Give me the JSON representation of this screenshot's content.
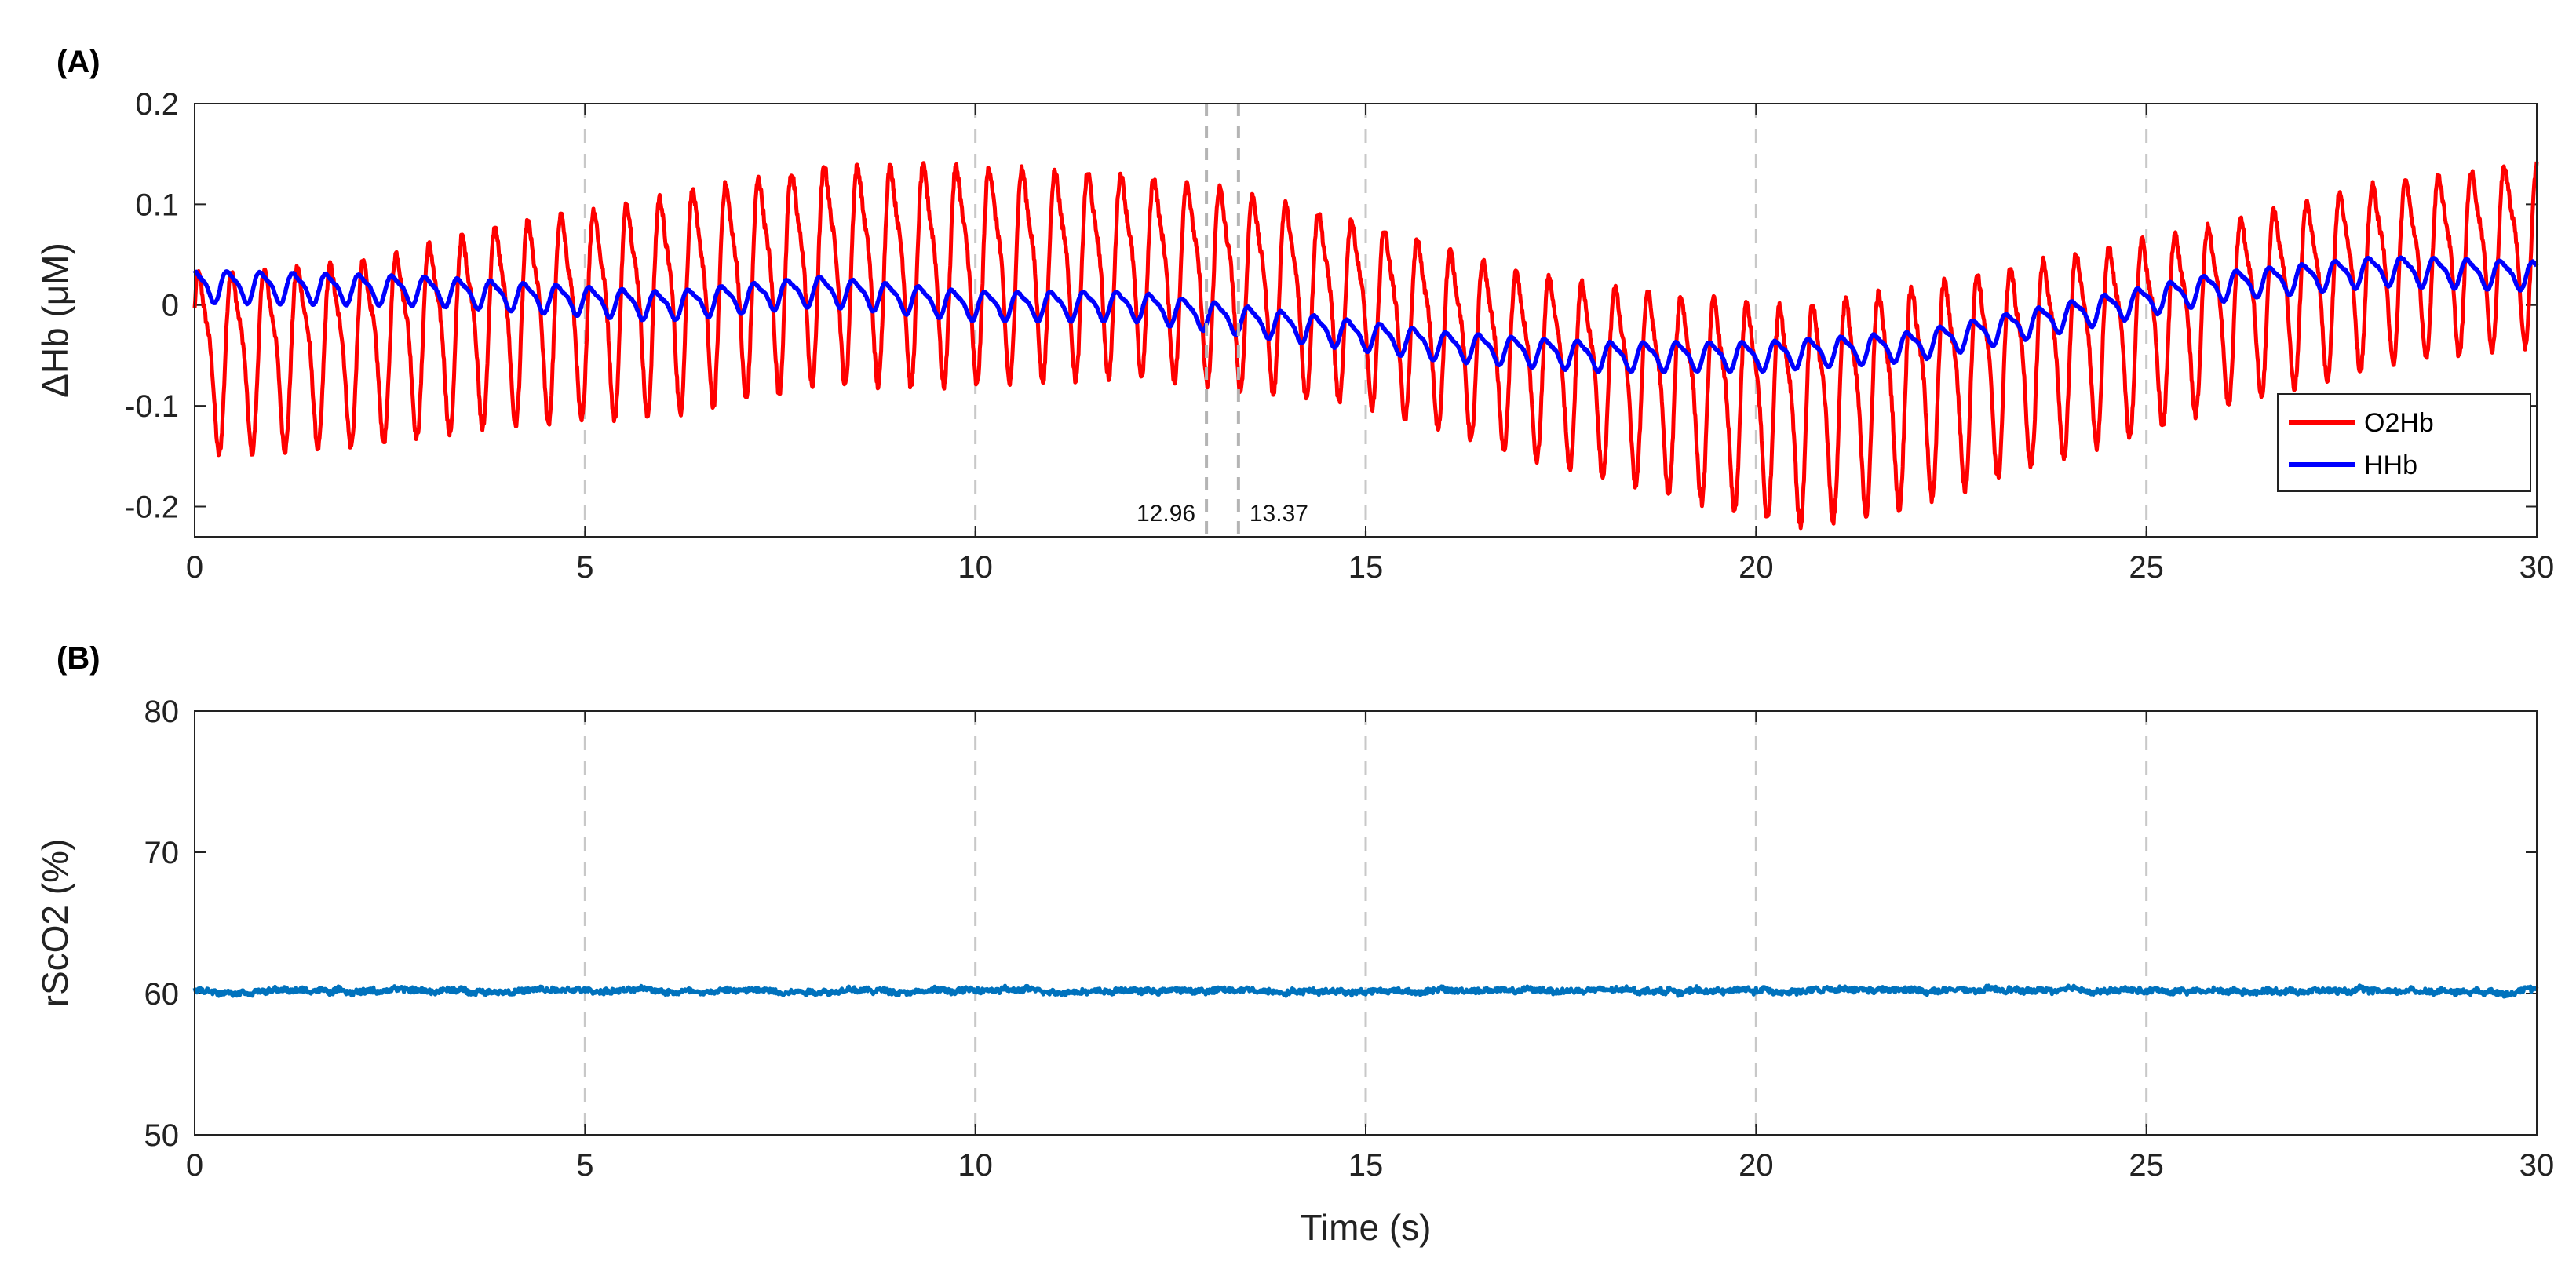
{
  "chart_data": [
    {
      "panel_label": "(A)",
      "type": "line",
      "ylabel": "ΔHb (μM)",
      "xlabel": "",
      "xlim": [
        0,
        30
      ],
      "ylim": [
        -0.23,
        0.2
      ],
      "xticks": [
        0,
        5,
        10,
        15,
        20,
        25,
        30
      ],
      "xtick_labels": [
        "0",
        "5",
        "10",
        "15",
        "20",
        "25",
        "30"
      ],
      "yticks": [
        0.2,
        0.1,
        0,
        -0.1,
        -0.2
      ],
      "ytick_labels": [
        "0.2",
        "0.1",
        "0",
        "-0.1",
        "-0.2"
      ],
      "grid": "x dashed",
      "legend_position": "lower-right",
      "annotations": [
        {
          "x": 12.96,
          "label": "12.96"
        },
        {
          "x": 13.37,
          "label": "13.37"
        }
      ],
      "series": [
        {
          "name": "O2Hb",
          "color": "#ff0000",
          "description_model": "oscillation ~2.37 Hz around slowly varying baseline",
          "oscillation_freq_hz": 2.37,
          "envelope_t": [
            0,
            2,
            4,
            6,
            8,
            10,
            12,
            13,
            15,
            17,
            19,
            20.5,
            22,
            24,
            26,
            28,
            30
          ],
          "mean": [
            -0.05,
            -0.04,
            -0.01,
            0.01,
            0.04,
            0.04,
            0.04,
            0.03,
            0.0,
            -0.05,
            -0.08,
            -0.1,
            -0.08,
            -0.04,
            0.0,
            0.04,
            0.06
          ],
          "amplitude": [
            0.1,
            0.1,
            0.11,
            0.12,
            0.12,
            0.12,
            0.11,
            0.11,
            0.1,
            0.1,
            0.11,
            0.12,
            0.12,
            0.11,
            0.1,
            0.1,
            0.1
          ]
        },
        {
          "name": "HHb",
          "color": "#0000ff",
          "description_model": "small oscillation ~2.37 Hz around slowly varying baseline",
          "oscillation_freq_hz": 2.37,
          "envelope_t": [
            0,
            3,
            6,
            8,
            10,
            12,
            14,
            16,
            18,
            20,
            22,
            24,
            26,
            28,
            30
          ],
          "mean": [
            0.02,
            0.015,
            0.0,
            0.015,
            0.0,
            0.0,
            -0.02,
            -0.04,
            -0.05,
            -0.05,
            -0.04,
            -0.01,
            0.02,
            0.035,
            0.03
          ],
          "amplitude": [
            0.018,
            0.016,
            0.016,
            0.016,
            0.016,
            0.016,
            0.016,
            0.016,
            0.016,
            0.016,
            0.016,
            0.016,
            0.016,
            0.016,
            0.016
          ]
        }
      ]
    },
    {
      "panel_label": "(B)",
      "type": "line",
      "ylabel": "rScO2 (%)",
      "xlabel": "Time (s)",
      "xlim": [
        0,
        30
      ],
      "ylim": [
        50,
        80
      ],
      "xticks": [
        0,
        5,
        10,
        15,
        20,
        25,
        30
      ],
      "xtick_labels": [
        "0",
        "5",
        "10",
        "15",
        "20",
        "25",
        "30"
      ],
      "yticks": [
        80,
        70,
        60,
        50
      ],
      "ytick_labels": [
        "80",
        "70",
        "60",
        "50"
      ],
      "grid": "x dashed",
      "series": [
        {
          "name": "rScO2",
          "color": "#0072bd",
          "description_model": "nearly constant at ~60 with small noise",
          "mean": 60.2,
          "noise_amplitude": 0.35
        }
      ]
    }
  ]
}
